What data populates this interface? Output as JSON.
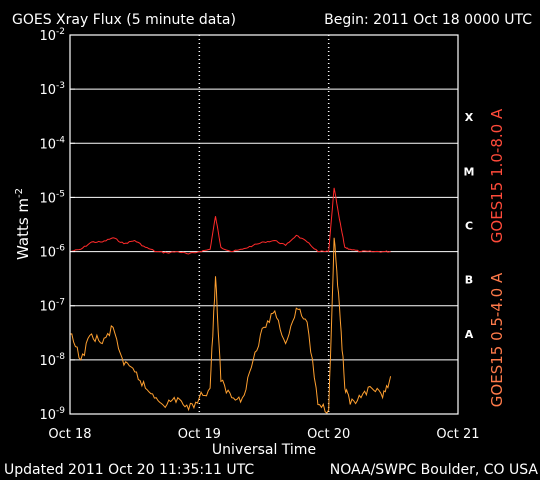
{
  "chart_data": {
    "type": "line",
    "title": "GOES Xray Flux (5 minute data)",
    "begin_label": "Begin:  2011 Oct 18 0000 UTC",
    "updated_label": "Updated 2011 Oct 20 11:35:11 UTC",
    "credit_label": "NOAA/SWPC Boulder, CO USA",
    "xlabel": "Universal Time",
    "ylabel": "Watts m",
    "ylabel_sup": "-2",
    "y_scale": "log",
    "ylim": [
      1e-09,
      0.01
    ],
    "xlim": [
      "2011-10-18 00:00",
      "2011-10-21 00:00"
    ],
    "x_ticks": [
      "Oct 18",
      "Oct 19",
      "Oct 20",
      "Oct 21"
    ],
    "y_ticks": [
      {
        "base": "10",
        "exp": "-2"
      },
      {
        "base": "10",
        "exp": "-3"
      },
      {
        "base": "10",
        "exp": "-4"
      },
      {
        "base": "10",
        "exp": "-5"
      },
      {
        "base": "10",
        "exp": "-6"
      },
      {
        "base": "10",
        "exp": "-7"
      },
      {
        "base": "10",
        "exp": "-8"
      },
      {
        "base": "10",
        "exp": "-9"
      }
    ],
    "flare_classes": [
      "X",
      "M",
      "C",
      "B",
      "A"
    ],
    "grid": true,
    "colors": {
      "long": "#ff2a2a",
      "short": "#ffa030",
      "axis": "#ffffff",
      "background": "#000000",
      "label_long": "#ff4a3a",
      "label_short": "#ff7a4a"
    },
    "series": [
      {
        "name": "GOES15 1.0-8.0 A",
        "color": "#ff2a2a",
        "x": [
          "2011-10-18 00:00",
          "2011-10-18 02:00",
          "2011-10-18 04:00",
          "2011-10-18 06:00",
          "2011-10-18 08:00",
          "2011-10-18 10:00",
          "2011-10-18 12:00",
          "2011-10-18 14:00",
          "2011-10-18 16:00",
          "2011-10-18 18:00",
          "2011-10-18 20:00",
          "2011-10-18 22:00",
          "2011-10-19 00:00",
          "2011-10-19 02:00",
          "2011-10-19 03:00",
          "2011-10-19 04:00",
          "2011-10-19 06:00",
          "2011-10-19 08:00",
          "2011-10-19 10:00",
          "2011-10-19 12:00",
          "2011-10-19 14:00",
          "2011-10-19 16:00",
          "2011-10-19 18:00",
          "2011-10-19 20:00",
          "2011-10-19 22:00",
          "2011-10-20 00:00",
          "2011-10-20 01:00",
          "2011-10-20 02:00",
          "2011-10-20 03:00",
          "2011-10-20 04:00",
          "2011-10-20 06:00",
          "2011-10-20 08:00",
          "2011-10-20 10:00",
          "2011-10-20 11:30"
        ],
        "values": [
          1e-06,
          1.1e-06,
          1.5e-06,
          1.5e-06,
          1.8e-06,
          1.4e-06,
          1.6e-06,
          1.2e-06,
          1e-06,
          9.5e-07,
          1e-06,
          9e-07,
          1e-06,
          1.1e-06,
          4.5e-06,
          1.2e-06,
          1e-06,
          1.1e-06,
          1.3e-06,
          1.5e-06,
          1.6e-06,
          1.3e-06,
          2e-06,
          1.5e-06,
          1e-06,
          1e-06,
          1.5e-05,
          4e-06,
          1.2e-06,
          1.1e-06,
          1e-06,
          1e-06,
          1e-06,
          1e-06
        ]
      },
      {
        "name": "GOES15 0.5-4.0 A",
        "color": "#ffa030",
        "x": [
          "2011-10-18 00:00",
          "2011-10-18 02:00",
          "2011-10-18 04:00",
          "2011-10-18 06:00",
          "2011-10-18 08:00",
          "2011-10-18 10:00",
          "2011-10-18 12:00",
          "2011-10-18 14:00",
          "2011-10-18 16:00",
          "2011-10-18 18:00",
          "2011-10-18 20:00",
          "2011-10-18 22:00",
          "2011-10-19 00:00",
          "2011-10-19 02:00",
          "2011-10-19 03:00",
          "2011-10-19 04:00",
          "2011-10-19 06:00",
          "2011-10-19 08:00",
          "2011-10-19 10:00",
          "2011-10-19 12:00",
          "2011-10-19 14:00",
          "2011-10-19 16:00",
          "2011-10-19 18:00",
          "2011-10-19 20:00",
          "2011-10-19 22:00",
          "2011-10-20 00:00",
          "2011-10-20 01:00",
          "2011-10-20 02:00",
          "2011-10-20 03:00",
          "2011-10-20 04:00",
          "2011-10-20 06:00",
          "2011-10-20 08:00",
          "2011-10-20 10:00",
          "2011-10-20 11:30"
        ],
        "values": [
          3e-08,
          1e-08,
          3e-08,
          2e-08,
          4e-08,
          8e-09,
          6e-09,
          3e-09,
          2e-09,
          1.5e-09,
          2e-09,
          1.2e-09,
          2e-09,
          3e-09,
          3.5e-07,
          4e-09,
          2e-09,
          2e-09,
          1e-08,
          4e-08,
          8e-08,
          2e-08,
          9e-08,
          5e-08,
          1.5e-09,
          1.2e-09,
          1.8e-06,
          1e-07,
          3e-09,
          1.5e-09,
          2e-09,
          3e-09,
          2e-09,
          5e-09
        ]
      }
    ]
  }
}
